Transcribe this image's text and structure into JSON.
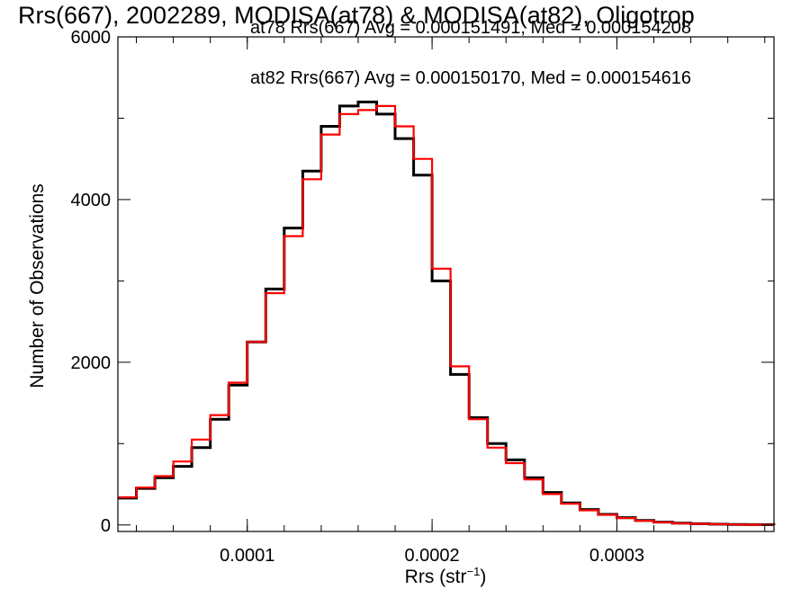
{
  "chart_data": {
    "type": "line",
    "title": "Rrs(667), 2002289, MODISA(at78) & MODISA(at82), Oligotrop",
    "xlabel": "Rrs (str",
    "xlabel_sup": "−1",
    "xlabel_close": ")",
    "ylabel": "Number of Observations",
    "xlim": [
      3e-05,
      0.000385
    ],
    "ylim": [
      -80,
      6000
    ],
    "x_ticks": [
      0.0001,
      0.0002,
      0.0003
    ],
    "x_tick_labels": [
      "0.0001",
      "0.0002",
      "0.0003"
    ],
    "y_ticks": [
      0,
      2000,
      4000,
      6000
    ],
    "y_tick_labels": [
      "0",
      "2000",
      "4000",
      "6000"
    ],
    "grid": false,
    "legend_position": "top-right",
    "series": [
      {
        "name": "at78 Rrs(667) Avg = 0.000151491, Med = 0.000154208",
        "color": "#000000",
        "x": [
          3e-05,
          4e-05,
          5e-05,
          6e-05,
          7e-05,
          8e-05,
          9e-05,
          0.0001,
          0.00011,
          0.00012,
          0.00013,
          0.00014,
          0.00015,
          0.00016,
          0.00017,
          0.00018,
          0.00019,
          0.0002,
          0.00021,
          0.00022,
          0.00023,
          0.00024,
          0.00025,
          0.00026,
          0.00027,
          0.00028,
          0.00029,
          0.0003,
          0.00031,
          0.00032,
          0.00033,
          0.00034,
          0.00035,
          0.00036,
          0.00037,
          0.000385
        ],
        "y": [
          330,
          450,
          580,
          720,
          950,
          1300,
          1720,
          2250,
          2900,
          3650,
          4350,
          4900,
          5150,
          5200,
          5050,
          4750,
          4300,
          3000,
          1850,
          1320,
          1000,
          800,
          580,
          400,
          270,
          190,
          130,
          90,
          55,
          35,
          22,
          15,
          10,
          6,
          4,
          2
        ]
      },
      {
        "name": "at82 Rrs(667) Avg = 0.000150170, Med = 0.000154616",
        "color": "#ff0000",
        "x": [
          3e-05,
          4e-05,
          5e-05,
          6e-05,
          7e-05,
          8e-05,
          9e-05,
          0.0001,
          0.00011,
          0.00012,
          0.00013,
          0.00014,
          0.00015,
          0.00016,
          0.00017,
          0.00018,
          0.00019,
          0.0002,
          0.00021,
          0.00022,
          0.00023,
          0.00024,
          0.00025,
          0.00026,
          0.00027,
          0.00028,
          0.00029,
          0.0003,
          0.00031,
          0.00032,
          0.00033,
          0.00034,
          0.00035,
          0.00036,
          0.00037,
          0.000385
        ],
        "y": [
          340,
          460,
          600,
          780,
          1050,
          1350,
          1750,
          2250,
          2850,
          3550,
          4250,
          4800,
          5050,
          5100,
          5150,
          4900,
          4500,
          3150,
          1950,
          1300,
          950,
          760,
          560,
          380,
          260,
          180,
          125,
          85,
          52,
          33,
          20,
          14,
          9,
          5,
          3,
          2
        ]
      }
    ]
  }
}
